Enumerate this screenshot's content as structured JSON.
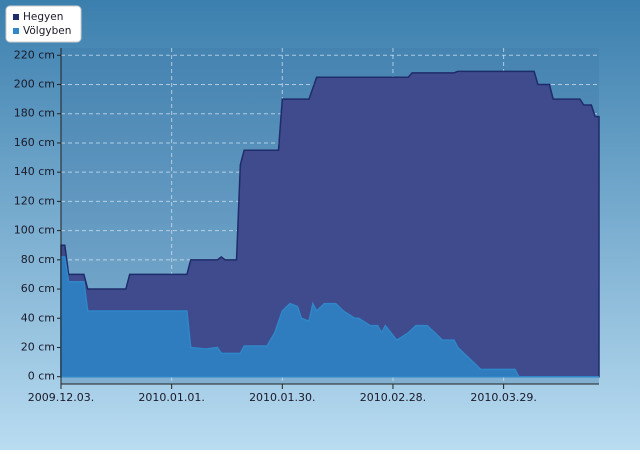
{
  "chart_data": {
    "type": "area",
    "series": [
      {
        "name": "Hegyen",
        "color": "#1f2c6b",
        "fill": "#3f4b8c",
        "x": [
          "2009-12-03",
          "2009-12-04",
          "2009-12-05",
          "2009-12-09",
          "2009-12-10",
          "2009-12-20",
          "2009-12-21",
          "2010-01-05",
          "2010-01-06",
          "2010-01-13",
          "2010-01-14",
          "2010-01-15",
          "2010-01-18",
          "2010-01-19",
          "2010-01-20",
          "2010-01-29",
          "2010-01-30",
          "2010-02-06",
          "2010-02-08",
          "2010-03-04",
          "2010-03-05",
          "2010-03-16",
          "2010-03-17",
          "2010-04-06",
          "2010-04-07",
          "2010-04-10",
          "2010-04-11",
          "2010-04-18",
          "2010-04-19",
          "2010-04-21",
          "2010-04-22",
          "2010-04-23"
        ],
        "values": [
          90,
          90,
          70,
          70,
          60,
          60,
          70,
          70,
          80,
          80,
          82,
          80,
          80,
          145,
          155,
          155,
          190,
          190,
          205,
          205,
          208,
          208,
          209,
          209,
          200,
          200,
          190,
          190,
          186,
          186,
          178,
          178
        ]
      },
      {
        "name": "Völgyben",
        "color": "#2f86c8",
        "fill": "#2f7dbf",
        "x": [
          "2009-12-03",
          "2009-12-04",
          "2009-12-05",
          "2009-12-09",
          "2009-12-10",
          "2010-01-05",
          "2010-01-06",
          "2010-01-10",
          "2010-01-13",
          "2010-01-14",
          "2010-01-19",
          "2010-01-20",
          "2010-01-26",
          "2010-01-28",
          "2010-01-30",
          "2010-02-01",
          "2010-02-03",
          "2010-02-04",
          "2010-02-06",
          "2010-02-07",
          "2010-02-08",
          "2010-02-10",
          "2010-02-13",
          "2010-02-15",
          "2010-02-18",
          "2010-02-19",
          "2010-02-22",
          "2010-02-24",
          "2010-02-25",
          "2010-02-26",
          "2010-03-01",
          "2010-03-04",
          "2010-03-06",
          "2010-03-09",
          "2010-03-11",
          "2010-03-13",
          "2010-03-16",
          "2010-03-17",
          "2010-03-19",
          "2010-03-21",
          "2010-03-23",
          "2010-03-26",
          "2010-04-01",
          "2010-04-02",
          "2010-04-23"
        ],
        "values": [
          82,
          82,
          65,
          65,
          45,
          45,
          20,
          19,
          20,
          16,
          16,
          21,
          21,
          30,
          45,
          50,
          48,
          40,
          38,
          50,
          45,
          50,
          50,
          45,
          40,
          40,
          35,
          35,
          30,
          35,
          25,
          30,
          35,
          35,
          30,
          25,
          25,
          20,
          15,
          10,
          5,
          5,
          5,
          0,
          0
        ]
      }
    ],
    "ylim": [
      -5,
      225
    ],
    "yticks": [
      {
        "value": 0,
        "label": "0 cm"
      },
      {
        "value": 20,
        "label": "20 cm"
      },
      {
        "value": 40,
        "label": "40 cm"
      },
      {
        "value": 60,
        "label": "60 cm"
      },
      {
        "value": 80,
        "label": "80 cm"
      },
      {
        "value": 100,
        "label": "100 cm"
      },
      {
        "value": 120,
        "label": "120 cm"
      },
      {
        "value": 140,
        "label": "140 cm"
      },
      {
        "value": 160,
        "label": "160 cm"
      },
      {
        "value": 180,
        "label": "180 cm"
      },
      {
        "value": 200,
        "label": "200 cm"
      },
      {
        "value": 220,
        "label": "220 cm"
      }
    ],
    "xlim": [
      "2009-12-03",
      "2010-04-23"
    ],
    "xticks": [
      {
        "value": "2009-12-03",
        "label": "2009.12.03."
      },
      {
        "value": "2010-01-01",
        "label": "2010.01.01."
      },
      {
        "value": "2010-01-30",
        "label": "2010.01.30."
      },
      {
        "value": "2010-02-28",
        "label": "2010.02.28."
      },
      {
        "value": "2010-03-29",
        "label": "2010.03.29."
      }
    ],
    "grid": true
  }
}
